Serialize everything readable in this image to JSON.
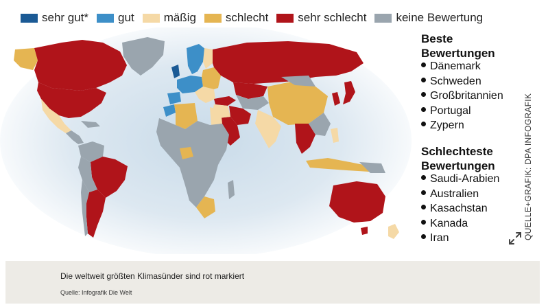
{
  "legend": {
    "items": [
      {
        "label": "sehr gut*",
        "color": "#1b5a95"
      },
      {
        "label": "gut",
        "color": "#3d8fc8"
      },
      {
        "label": "mäßig",
        "color": "#f5d9a6"
      },
      {
        "label": "schlecht",
        "color": "#e5b552"
      },
      {
        "label": "sehr schlecht",
        "color": "#b0141a"
      },
      {
        "label": "keine Bewertung",
        "color": "#9aa5ae"
      }
    ]
  },
  "best": {
    "heading_line1": "Beste",
    "heading_line2": "Bewertungen",
    "items": [
      "Dänemark",
      "Schweden",
      "Großbritannien",
      "Portugal",
      "Zypern"
    ]
  },
  "worst": {
    "heading_line1": "Schlechteste",
    "heading_line2": "Bewertungen",
    "items": [
      "Saudi-Arabien",
      "Australien",
      "Kasachstan",
      "Kanada",
      "Iran"
    ]
  },
  "source_vertical": "QUELLE+GRAFIK: DPA INFOGRAFIK",
  "caption": {
    "text": "Die weltweit größten Klimasünder sind rot markiert",
    "source": "Quelle: Infografik Die Welt"
  },
  "icons": {
    "expand": "expand-icon"
  }
}
